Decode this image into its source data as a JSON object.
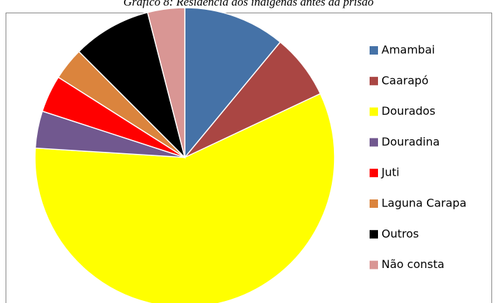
{
  "chart_data": {
    "type": "pie",
    "title": "Gráfico 8: Residência dos indígenas antes da prisão",
    "categories": [
      "Amambai",
      "Caarapó",
      "Dourados",
      "Douradina",
      "Juti",
      "Laguna Carapa",
      "Outros",
      "Não consta"
    ],
    "values": [
      11,
      7,
      58,
      4,
      4,
      3.5,
      8.5,
      4
    ],
    "colors": [
      "#4572a7",
      "#aa4643",
      "#ffff00",
      "#71588f",
      "#ff0000",
      "#db843d",
      "#000000",
      "#d99694"
    ],
    "legend": "right"
  }
}
